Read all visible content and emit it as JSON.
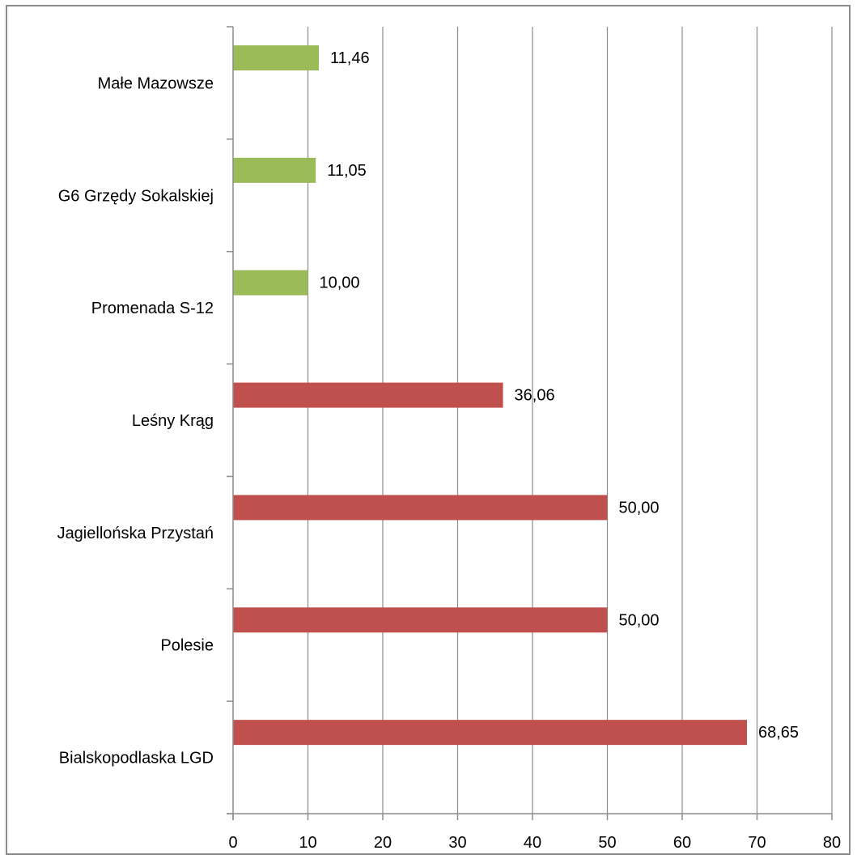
{
  "chart_data": {
    "type": "bar",
    "orientation": "horizontal",
    "categories": [
      "Małe Mazowsze",
      "G6 Grzędy Sokalskiej",
      "Promenada S-12",
      "Leśny Krąg",
      "Jagiellońska Przystań",
      "Polesie",
      "Bialskopodlaska LGD"
    ],
    "values": [
      11.46,
      11.05,
      10.0,
      36.06,
      50.0,
      50.0,
      68.65
    ],
    "data_labels": [
      "11,46",
      "11,05",
      "10,00",
      "36,06",
      "50,00",
      "50,00",
      "68,65"
    ],
    "bar_colors": [
      "#9bbb59",
      "#9bbb59",
      "#9bbb59",
      "#c0504d",
      "#c0504d",
      "#c0504d",
      "#c0504d"
    ],
    "x_ticks": [
      0,
      10,
      20,
      30,
      40,
      50,
      60,
      70,
      80
    ],
    "xlim": [
      0,
      80
    ],
    "grid": true,
    "grid_color": "#8c8c8c",
    "axis_color": "#8c8c8c",
    "title": "",
    "xlabel": "",
    "ylabel": "",
    "legend": "none"
  }
}
